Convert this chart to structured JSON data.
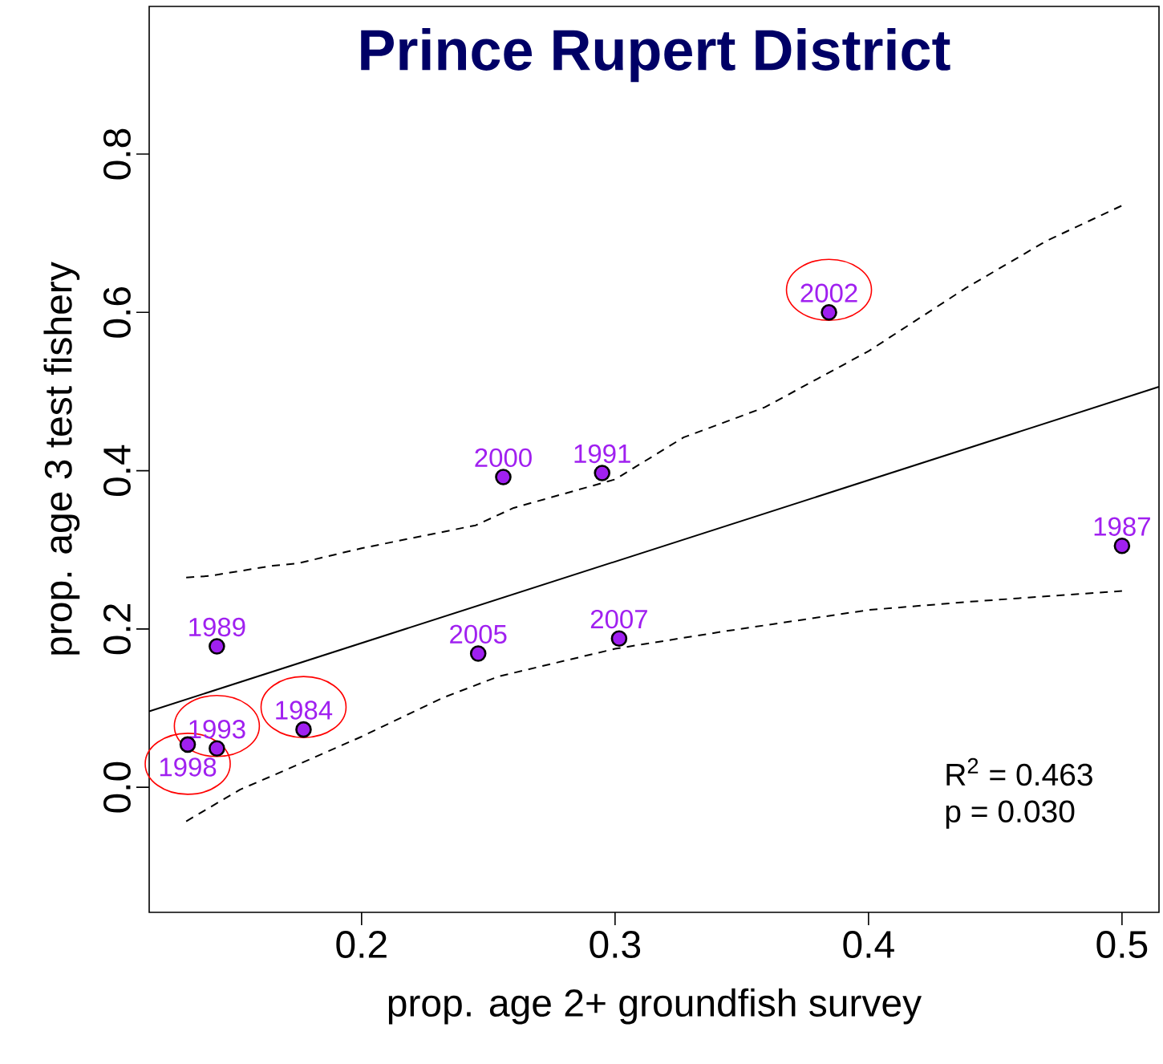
{
  "chart_data": {
    "type": "scatter",
    "title": "Prince Rupert District",
    "xlabel": "prop. age 2+ groundfish survey",
    "ylabel": "prop. age 3 test fishery",
    "xlim": [
      0.1162,
      0.5146
    ],
    "ylim": [
      -0.158,
      0.9866
    ],
    "xticks": [
      0.2,
      0.3,
      0.4,
      0.5
    ],
    "yticks": [
      {
        "value": 0,
        "label": "0.0"
      },
      0.2,
      0.4,
      0.6,
      0.8
    ],
    "series": [
      {
        "marker": "circle",
        "color": "#a020f0",
        "x": [
          0.1314,
          0.1429,
          0.1771,
          0.1429,
          0.246,
          0.2559,
          0.2949,
          0.3016,
          0.3844,
          0.5
        ],
        "values": [
          0.054,
          0.049,
          0.073,
          0.178,
          0.169,
          0.392,
          0.397,
          0.188,
          0.6,
          0.305
        ]
      },
      {
        "type": "line",
        "marker": "none",
        "color": "#000000",
        "line_style": "solid",
        "x": [
          0.1162,
          0.5146
        ],
        "values": [
          0.096,
          0.506
        ]
      },
      {
        "type": "line",
        "marker": "none",
        "color": "#000000",
        "line_style": "dashed",
        "x": [
          0.1308,
          0.14,
          0.165,
          0.175,
          0.2,
          0.245,
          0.26,
          0.3,
          0.327,
          0.359,
          0.4,
          0.438,
          0.47,
          0.5
        ],
        "values": [
          0.265,
          0.267,
          0.28,
          0.283,
          0.302,
          0.331,
          0.353,
          0.389,
          0.442,
          0.48,
          0.551,
          0.63,
          0.69,
          0.735
        ]
      },
      {
        "type": "line",
        "marker": "none",
        "color": "#000000",
        "line_style": "dashed",
        "x": [
          0.1308,
          0.152,
          0.168,
          0.2,
          0.232,
          0.254,
          0.3,
          0.343,
          0.4,
          0.438,
          0.5
        ],
        "values": [
          -0.043,
          -0.003,
          0.019,
          0.064,
          0.113,
          0.14,
          0.175,
          0.197,
          0.224,
          0.234,
          0.248
        ]
      }
    ],
    "annotations": [
      {
        "text": "1998",
        "x": 0.1314,
        "y": 0.054
      },
      {
        "text": "1993",
        "x": 0.1429,
        "y": 0.049
      },
      {
        "text": "1984",
        "x": 0.1771,
        "y": 0.073
      },
      {
        "text": "1989",
        "x": 0.1429,
        "y": 0.178
      },
      {
        "text": "2005",
        "x": 0.246,
        "y": 0.169
      },
      {
        "text": "2000",
        "x": 0.2559,
        "y": 0.392
      },
      {
        "text": "1991",
        "x": 0.2949,
        "y": 0.397
      },
      {
        "text": "2007",
        "x": 0.3016,
        "y": 0.188
      },
      {
        "text": "2002",
        "x": 0.3844,
        "y": 0.6
      },
      {
        "text": "1987",
        "x": 0.5,
        "y": 0.305
      },
      "R$^{2}$ = 0.463",
      "p = 0.030"
    ]
  }
}
